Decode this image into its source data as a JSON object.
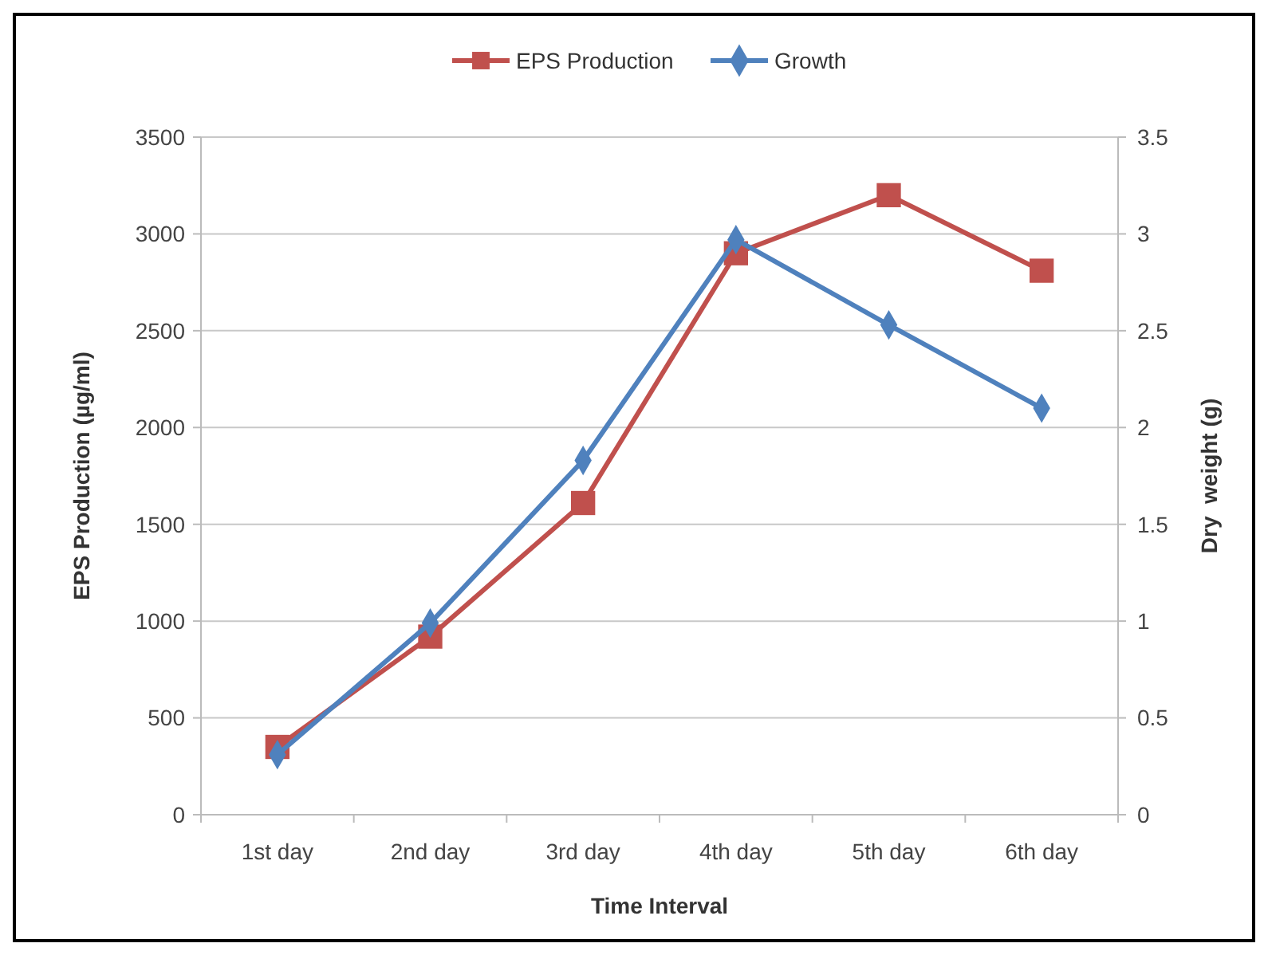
{
  "chart_data": {
    "type": "line",
    "xlabel": "Time Interval",
    "ylabel": "EPS Production (µg/ml)",
    "y2label": "Dry  weight (g)",
    "categories": [
      "1st day",
      "2nd day",
      "3rd day",
      "4th day",
      "5th day",
      "6th day"
    ],
    "series": [
      {
        "name": "EPS Production",
        "color": "#c0504d",
        "marker": "square",
        "values": [
          350,
          920,
          1610,
          2900,
          3200,
          2810
        ]
      },
      {
        "name": "Growth",
        "color": "#4f81bd",
        "marker": "diamond",
        "axis": "y2",
        "values": [
          0.31,
          0.99,
          1.83,
          2.97,
          2.53,
          2.1
        ]
      }
    ],
    "ylim": [
      0,
      3500
    ],
    "yticks": [
      0,
      500,
      1000,
      1500,
      2000,
      2500,
      3000,
      3500
    ],
    "y2lim": [
      0,
      3.5
    ],
    "y2ticks": [
      0,
      0.5,
      1,
      1.5,
      2,
      2.5,
      3,
      3.5
    ],
    "grid": "y",
    "legend": "top"
  }
}
